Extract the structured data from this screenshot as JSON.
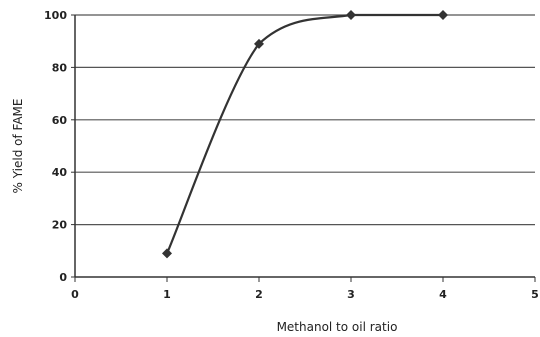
{
  "chart_data": {
    "type": "line",
    "title": "",
    "xlabel": "Methanol to oil ratio",
    "ylabel": "% Yield of FAME",
    "xlim": [
      0,
      5
    ],
    "ylim": [
      0,
      100
    ],
    "xticks": [
      "0",
      "1",
      "2",
      "3",
      "4",
      "5"
    ],
    "yticks": [
      "0",
      "20",
      "40",
      "60",
      "80",
      "100"
    ],
    "grid": "horizontal",
    "legend": "none",
    "smooth": true,
    "series": [
      {
        "x": [
          1,
          2,
          3,
          4
        ],
        "y": [
          9,
          89,
          100,
          100
        ],
        "color": "#333333",
        "marker": "diamond"
      }
    ]
  }
}
